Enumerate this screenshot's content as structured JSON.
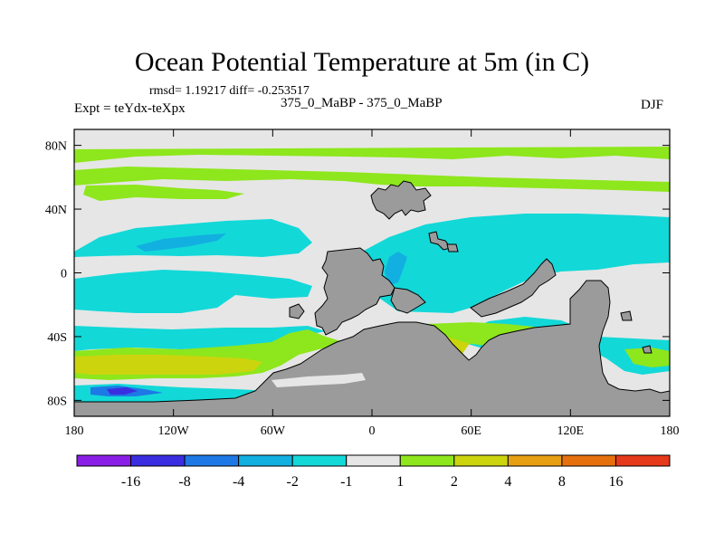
{
  "chart_data": {
    "type": "heatmap",
    "title": "Ocean Potential Temperature at 5m (in C)",
    "stats": "rmsd= 1.19217 diff= -0.253517",
    "left_label": "Expt = teYdx-teXpx",
    "center_label": "375_0_MaBP - 375_0_MaBP",
    "right_label": "DJF",
    "x_axis": {
      "range": [
        -180,
        180
      ],
      "ticks": [
        -180,
        -120,
        -60,
        0,
        60,
        120,
        180
      ],
      "tick_labels": [
        "180",
        "120W",
        "60W",
        "0",
        "60E",
        "120E",
        "180"
      ]
    },
    "y_axis": {
      "range": [
        -90,
        90
      ],
      "ticks": [
        80,
        40,
        0,
        -40,
        -80
      ],
      "tick_labels": [
        "80N",
        "40N",
        "0",
        "40S",
        "80S"
      ]
    },
    "colorbar": {
      "colors": [
        "#8a1ee6",
        "#3a2ee0",
        "#1e78e6",
        "#12b0e0",
        "#13d8d8",
        "#e6e6e6",
        "#8ee61c",
        "#ccd40e",
        "#e6a012",
        "#e6700e",
        "#e6381a"
      ],
      "labels": [
        "-16",
        "-8",
        "-4",
        "-2",
        "-1",
        "1",
        "2",
        "4",
        "8",
        "16"
      ]
    },
    "land_color": "#9b9b9b"
  }
}
